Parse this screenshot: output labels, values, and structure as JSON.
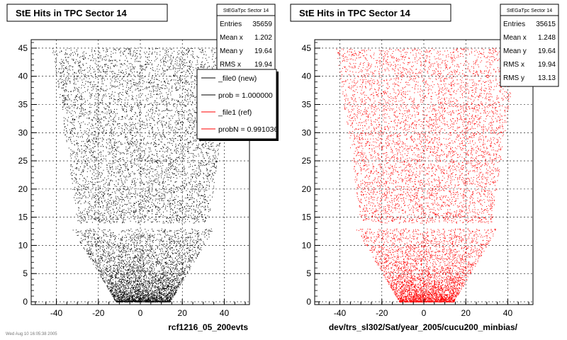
{
  "chart_data": [
    {
      "type": "scatter",
      "title": "StE Hits in TPC Sector 14",
      "xlabel": "rcf1216_05_200evts",
      "ylabel": "",
      "xlim": [
        -52,
        52
      ],
      "ylim": [
        -0.5,
        46.5
      ],
      "xticks": [
        -40,
        -20,
        0,
        20,
        40
      ],
      "xtick_labels": [
        "-40",
        "-20",
        "0",
        "20",
        "40"
      ],
      "yticks": [
        0,
        5,
        10,
        15,
        20,
        25,
        30,
        35,
        40,
        45
      ],
      "ytick_labels": [
        "0",
        "5",
        "10",
        "15",
        "20",
        "25",
        "30",
        "35",
        "40",
        "45"
      ],
      "grid": true,
      "point_color": "#000000",
      "stats": {
        "title": "StEGaTpc Sector 14",
        "rows": [
          {
            "label": "Entries",
            "value": "35659"
          },
          {
            "label": "Mean x",
            "value": "1.202"
          },
          {
            "label": "Mean y",
            "value": "19.64"
          },
          {
            "label": "RMS x",
            "value": "19.94"
          }
        ]
      },
      "legend": {
        "placement": "top-right",
        "entries": [
          {
            "label": "_file0 (new)",
            "color": "#000000"
          },
          {
            "label": "prob = 1.000000",
            "color": "#000000"
          },
          {
            "label": "_file1 (ref)",
            "color": "#ff0000"
          },
          {
            "label": "probN = 0.991036",
            "color": "#ff0000"
          }
        ]
      },
      "footer": "Wed Aug 10 16:05:38 2005"
    },
    {
      "type": "scatter",
      "title": "StE Hits in TPC Sector 14",
      "xlabel": "dev/trs_sl302/Sat/year_2005/cucu200_minbias/",
      "ylabel": "",
      "xlim": [
        -52,
        52
      ],
      "ylim": [
        -0.5,
        46.5
      ],
      "xticks": [
        -40,
        -20,
        0,
        20,
        40
      ],
      "xtick_labels": [
        "-40",
        "-20",
        "0",
        "20",
        "40"
      ],
      "yticks": [
        0,
        5,
        10,
        15,
        20,
        25,
        30,
        35,
        40,
        45
      ],
      "ytick_labels": [
        "0",
        "5",
        "10",
        "15",
        "20",
        "25",
        "30",
        "35",
        "40",
        "45"
      ],
      "grid": true,
      "point_color": "#ff0000",
      "stats": {
        "title": "StEGaTpc Sector 14",
        "rows": [
          {
            "label": "Entries",
            "value": "35615"
          },
          {
            "label": "Mean x",
            "value": "1.248"
          },
          {
            "label": "Mean y",
            "value": "19.64"
          },
          {
            "label": "RMS x",
            "value": "19.94"
          },
          {
            "label": "RMS y",
            "value": "13.13"
          }
        ]
      }
    }
  ]
}
